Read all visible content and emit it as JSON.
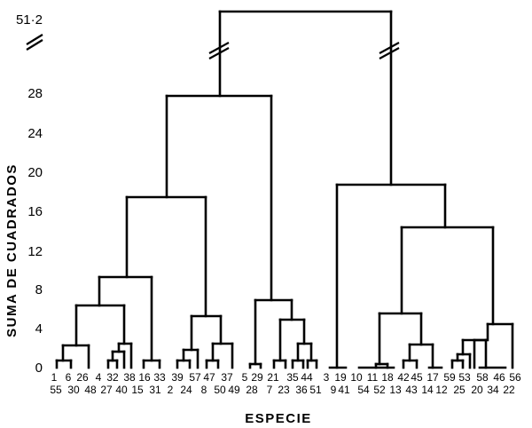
{
  "diagram": {
    "type": "dendrogram",
    "y_axis_label": "SUMA DE CUADRADOS",
    "x_axis_label": "ESPECIE",
    "y_ticks": [
      "0",
      "4",
      "8",
      "12",
      "16",
      "20",
      "24",
      "28"
    ],
    "break_value_label": "51·2",
    "leaf_labels_top": [
      "1",
      "6",
      "26",
      "4",
      "32",
      "38",
      "16",
      "33",
      "39",
      "57",
      "47",
      "37",
      "5",
      "29",
      "21",
      "35",
      "44",
      "3",
      "19",
      "10",
      "11",
      "18",
      "42",
      "45",
      "17",
      "59",
      "53",
      "58",
      "46",
      "56"
    ],
    "leaf_labels_bottom": [
      "55",
      "30",
      "48",
      "27",
      "40",
      "15",
      "31",
      "2",
      "24",
      "8",
      "50",
      "49",
      "28",
      "7",
      "23",
      "36",
      "51",
      "9",
      "41",
      "54",
      "52",
      "13",
      "43",
      "14",
      "12",
      "25",
      "20",
      "34",
      "22"
    ]
  }
}
